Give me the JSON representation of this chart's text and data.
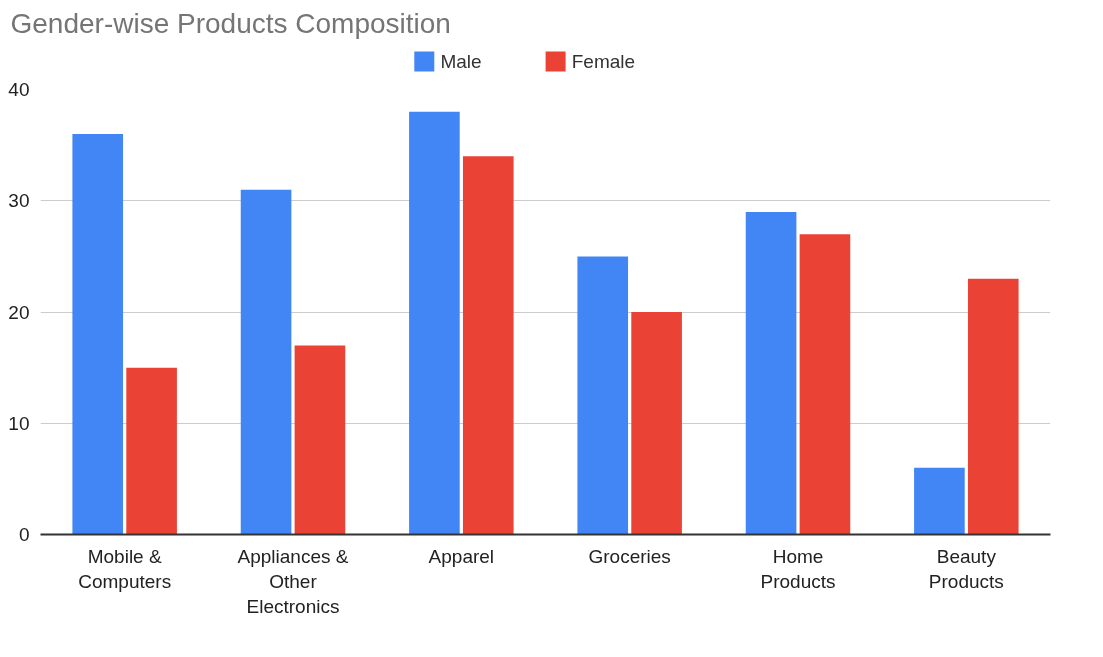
{
  "chart_data": {
    "type": "bar",
    "title": "Gender-wise Products Composition",
    "categories": [
      "Mobile & Computers",
      "Appliances & Other Electronics",
      "Apparel",
      "Groceries",
      "Home Products",
      "Beauty Products"
    ],
    "series": [
      {
        "name": "Male",
        "color": "#4285f4",
        "values": [
          36,
          31,
          38,
          25,
          29,
          6
        ]
      },
      {
        "name": "Female",
        "color": "#ea4335",
        "values": [
          15,
          17,
          34,
          20,
          27,
          23
        ]
      }
    ],
    "ylim": [
      0,
      40
    ],
    "yticks": [
      0,
      10,
      20,
      30,
      40
    ],
    "grid": "y",
    "legend": "top"
  }
}
